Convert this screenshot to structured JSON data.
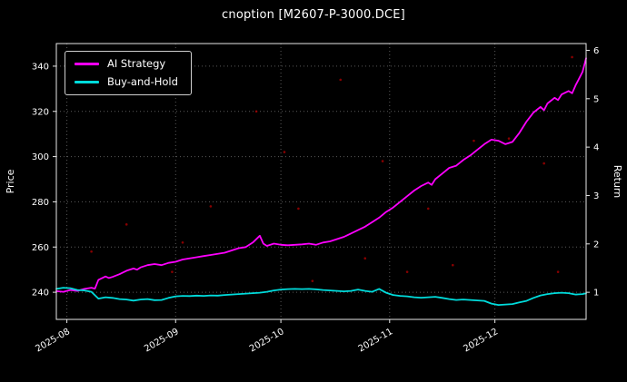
{
  "chart_data": {
    "type": "line",
    "title": "cnoption [M2607-P-3000.DCE]",
    "ylabel_left": "Price",
    "ylabel_right": "Return",
    "xlim": [
      0,
      151
    ],
    "price_lim": [
      228,
      350
    ],
    "return_lim": [
      0.44,
      6.14
    ],
    "price_ticks": [
      240,
      260,
      280,
      300,
      320,
      340
    ],
    "return_ticks": [
      1,
      2,
      3,
      4,
      5,
      6
    ],
    "x_ticks": [
      {
        "label": "2025-08",
        "day": 3
      },
      {
        "label": "2025-09",
        "day": 34
      },
      {
        "label": "2025-10",
        "day": 64
      },
      {
        "label": "2025-11",
        "day": 95
      },
      {
        "label": "2025-12",
        "day": 125
      }
    ],
    "grid": true,
    "legend_position": "upper-left",
    "colors": {
      "background": "#000000",
      "text": "#ffffff",
      "grid": "#5a5a5a",
      "spine": "#e8e8e8",
      "signal": "#aa0000"
    },
    "series": [
      {
        "name": "AI Strategy",
        "color": "#ff00ff",
        "axis": "price",
        "points": [
          [
            0,
            240.5
          ],
          [
            2,
            240.2
          ],
          [
            4,
            241
          ],
          [
            6,
            240.6
          ],
          [
            8,
            241.5
          ],
          [
            10,
            242
          ],
          [
            11,
            241.6
          ],
          [
            12,
            245.5
          ],
          [
            14,
            247
          ],
          [
            15,
            246.3
          ],
          [
            16,
            246.8
          ],
          [
            18,
            248
          ],
          [
            20,
            249.5
          ],
          [
            22,
            250.5
          ],
          [
            23,
            250
          ],
          [
            24,
            251
          ],
          [
            26,
            252
          ],
          [
            28,
            252.5
          ],
          [
            30,
            252
          ],
          [
            32,
            253
          ],
          [
            34,
            253.5
          ],
          [
            36,
            254.5
          ],
          [
            38,
            255
          ],
          [
            40,
            255.5
          ],
          [
            42,
            256
          ],
          [
            44,
            256.5
          ],
          [
            46,
            257
          ],
          [
            48,
            257.5
          ],
          [
            50,
            258.5
          ],
          [
            52,
            259.5
          ],
          [
            54,
            260
          ],
          [
            56,
            262
          ],
          [
            58,
            265
          ],
          [
            59,
            261.5
          ],
          [
            60,
            260.5
          ],
          [
            62,
            261.5
          ],
          [
            64,
            261
          ],
          [
            66,
            260.8
          ],
          [
            68,
            261
          ],
          [
            70,
            261.2
          ],
          [
            72,
            261.5
          ],
          [
            74,
            261
          ],
          [
            76,
            262
          ],
          [
            78,
            262.5
          ],
          [
            80,
            263.5
          ],
          [
            82,
            264.5
          ],
          [
            84,
            266
          ],
          [
            86,
            267.5
          ],
          [
            88,
            269
          ],
          [
            90,
            271
          ],
          [
            92,
            273
          ],
          [
            94,
            275.5
          ],
          [
            96,
            277.5
          ],
          [
            98,
            280
          ],
          [
            100,
            282.5
          ],
          [
            102,
            285
          ],
          [
            104,
            287
          ],
          [
            106,
            288.5
          ],
          [
            107,
            287.5
          ],
          [
            108,
            290
          ],
          [
            110,
            292.5
          ],
          [
            112,
            295
          ],
          [
            114,
            296
          ],
          [
            116,
            298.5
          ],
          [
            118,
            300.5
          ],
          [
            120,
            303
          ],
          [
            122,
            305.5
          ],
          [
            124,
            307.5
          ],
          [
            126,
            307
          ],
          [
            128,
            305.5
          ],
          [
            130,
            306.5
          ],
          [
            132,
            310.5
          ],
          [
            134,
            315.5
          ],
          [
            136,
            319.5
          ],
          [
            138,
            322
          ],
          [
            139,
            320.5
          ],
          [
            140,
            323.5
          ],
          [
            142,
            326
          ],
          [
            143,
            325
          ],
          [
            144,
            327.5
          ],
          [
            146,
            329
          ],
          [
            147,
            328
          ],
          [
            148,
            331.5
          ],
          [
            149,
            334.5
          ],
          [
            150,
            337.5
          ],
          [
            151,
            343.5
          ]
        ]
      },
      {
        "name": "Buy-and-Hold",
        "color": "#00dcdc",
        "axis": "price",
        "points": [
          [
            0,
            241.5
          ],
          [
            2,
            242
          ],
          [
            4,
            241.8
          ],
          [
            6,
            241
          ],
          [
            8,
            240.8
          ],
          [
            10,
            240.2
          ],
          [
            12,
            237.2
          ],
          [
            14,
            237.8
          ],
          [
            16,
            237.5
          ],
          [
            18,
            237
          ],
          [
            20,
            236.8
          ],
          [
            22,
            236.3
          ],
          [
            24,
            236.8
          ],
          [
            26,
            237
          ],
          [
            28,
            236.5
          ],
          [
            30,
            236.6
          ],
          [
            32,
            237.5
          ],
          [
            34,
            238.2
          ],
          [
            36,
            238.4
          ],
          [
            38,
            238.3
          ],
          [
            40,
            238.5
          ],
          [
            42,
            238.4
          ],
          [
            44,
            238.6
          ],
          [
            46,
            238.5
          ],
          [
            48,
            238.8
          ],
          [
            50,
            239
          ],
          [
            52,
            239.2
          ],
          [
            54,
            239.4
          ],
          [
            56,
            239.6
          ],
          [
            58,
            239.8
          ],
          [
            60,
            240.2
          ],
          [
            62,
            240.8
          ],
          [
            64,
            241.2
          ],
          [
            66,
            241.4
          ],
          [
            68,
            241.5
          ],
          [
            70,
            241.4
          ],
          [
            72,
            241.5
          ],
          [
            74,
            241.3
          ],
          [
            76,
            241
          ],
          [
            78,
            240.8
          ],
          [
            80,
            240.6
          ],
          [
            82,
            240.4
          ],
          [
            84,
            240.6
          ],
          [
            86,
            241.2
          ],
          [
            88,
            240.6
          ],
          [
            90,
            240.2
          ],
          [
            92,
            241.5
          ],
          [
            94,
            239.8
          ],
          [
            96,
            238.8
          ],
          [
            98,
            238.4
          ],
          [
            100,
            238.2
          ],
          [
            102,
            237.8
          ],
          [
            104,
            237.6
          ],
          [
            106,
            237.8
          ],
          [
            108,
            238
          ],
          [
            110,
            237.5
          ],
          [
            112,
            237
          ],
          [
            114,
            236.6
          ],
          [
            116,
            236.8
          ],
          [
            118,
            236.6
          ],
          [
            120,
            236.4
          ],
          [
            122,
            236.2
          ],
          [
            124,
            235
          ],
          [
            126,
            234.4
          ],
          [
            128,
            234.6
          ],
          [
            130,
            234.8
          ],
          [
            132,
            235.5
          ],
          [
            134,
            236.2
          ],
          [
            136,
            237.5
          ],
          [
            138,
            238.6
          ],
          [
            140,
            239.2
          ],
          [
            142,
            239.6
          ],
          [
            144,
            239.8
          ],
          [
            146,
            239.6
          ],
          [
            148,
            239
          ],
          [
            150,
            239.2
          ],
          [
            151,
            239.5
          ]
        ]
      }
    ],
    "signal_dots": [
      [
        10,
        258
      ],
      [
        20,
        270
      ],
      [
        33,
        249
      ],
      [
        36,
        262
      ],
      [
        44,
        278
      ],
      [
        57,
        320
      ],
      [
        65,
        302
      ],
      [
        69,
        277
      ],
      [
        73,
        245
      ],
      [
        81,
        334
      ],
      [
        88,
        255
      ],
      [
        93,
        298
      ],
      [
        100,
        249
      ],
      [
        106,
        277
      ],
      [
        113,
        252
      ],
      [
        119,
        307
      ],
      [
        129,
        308
      ],
      [
        139,
        297
      ],
      [
        143,
        249
      ],
      [
        147,
        344
      ]
    ]
  }
}
